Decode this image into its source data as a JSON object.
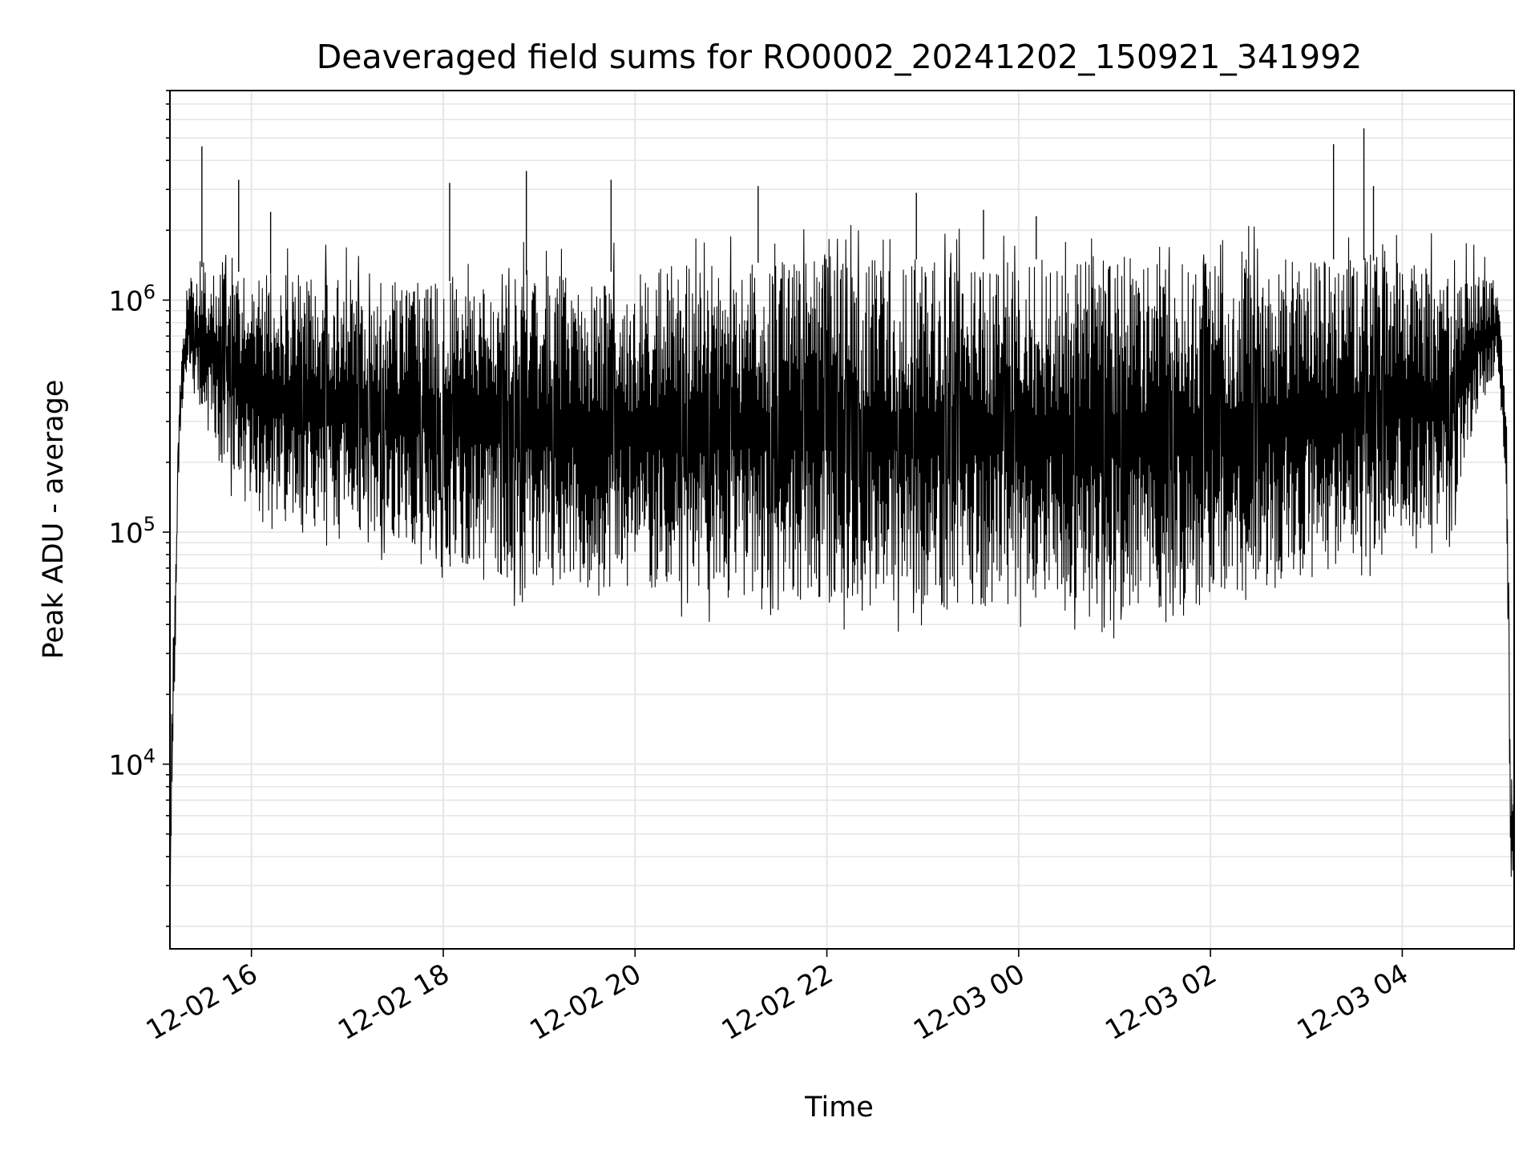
{
  "chart_data": {
    "type": "line",
    "title": "Deaveraged field sums for RO0002_20241202_150921_341992",
    "xlabel": "Time",
    "ylabel": "Peak ADU - average",
    "y_scale": "log",
    "ylim": [
      1600,
      8000000
    ],
    "xlim": [
      "2024-12-02 15:09",
      "2024-12-03 05:10"
    ],
    "grid": true,
    "legend": "none",
    "line_color": "#000000",
    "x_ticks": [
      "2024-12-02 16:00",
      "2024-12-02 18:00",
      "2024-12-02 20:00",
      "2024-12-02 22:00",
      "2024-12-03 00:00",
      "2024-12-03 02:00",
      "2024-12-03 04:00"
    ],
    "x_tick_labels": [
      "12-02 16",
      "12-02 18",
      "12-02 20",
      "12-02 22",
      "12-03 00",
      "12-03 02",
      "12-03 04"
    ],
    "y_major_ticks": [
      10000,
      100000,
      1000000
    ],
    "y_tick_labels": [
      {
        "base": "10",
        "exp": "4"
      },
      {
        "base": "10",
        "exp": "5"
      },
      {
        "base": "10",
        "exp": "6"
      }
    ],
    "envelope": [
      {
        "t": "2024-12-02 15:09",
        "low": 2500,
        "high": 2500
      },
      {
        "t": "2024-12-02 15:10",
        "low": 4500,
        "high": 18000
      },
      {
        "t": "2024-12-02 15:15",
        "low": 250000,
        "high": 400000
      },
      {
        "t": "2024-12-02 15:20",
        "low": 500000,
        "high": 1300000
      },
      {
        "t": "2024-12-02 15:30",
        "low": 300000,
        "high": 1400000
      },
      {
        "t": "2024-12-02 16:00",
        "low": 120000,
        "high": 1300000
      },
      {
        "t": "2024-12-02 16:30",
        "low": 105000,
        "high": 1300000
      },
      {
        "t": "2024-12-02 17:00",
        "low": 100000,
        "high": 1200000
      },
      {
        "t": "2024-12-02 17:30",
        "low": 95000,
        "high": 1200000
      },
      {
        "t": "2024-12-02 18:00",
        "low": 80000,
        "high": 1200000
      },
      {
        "t": "2024-12-02 18:30",
        "low": 65000,
        "high": 1250000
      },
      {
        "t": "2024-12-02 19:00",
        "low": 60000,
        "high": 1300000
      },
      {
        "t": "2024-12-02 19:30",
        "low": 58000,
        "high": 1300000
      },
      {
        "t": "2024-12-02 20:00",
        "low": 57000,
        "high": 1350000
      },
      {
        "t": "2024-12-02 20:30",
        "low": 55000,
        "high": 1400000
      },
      {
        "t": "2024-12-02 21:00",
        "low": 52000,
        "high": 1450000
      },
      {
        "t": "2024-12-02 21:30",
        "low": 52000,
        "high": 1450000
      },
      {
        "t": "2024-12-02 22:00",
        "low": 50000,
        "high": 1500000
      },
      {
        "t": "2024-12-02 22:30",
        "low": 50000,
        "high": 1500000
      },
      {
        "t": "2024-12-02 23:00",
        "low": 48000,
        "high": 1500000
      },
      {
        "t": "2024-12-02 23:30",
        "low": 48000,
        "high": 1500000
      },
      {
        "t": "2024-12-03 00:00",
        "low": 47000,
        "high": 1500000
      },
      {
        "t": "2024-12-03 00:30",
        "low": 46000,
        "high": 1500000
      },
      {
        "t": "2024-12-03 01:00",
        "low": 46000,
        "high": 1550000
      },
      {
        "t": "2024-12-03 01:30",
        "low": 47000,
        "high": 1500000
      },
      {
        "t": "2024-12-03 02:00",
        "low": 50000,
        "high": 1500000
      },
      {
        "t": "2024-12-03 02:30",
        "low": 58000,
        "high": 1500000
      },
      {
        "t": "2024-12-03 03:00",
        "low": 65000,
        "high": 1500000
      },
      {
        "t": "2024-12-03 03:30",
        "low": 75000,
        "high": 1500000
      },
      {
        "t": "2024-12-03 04:00",
        "low": 90000,
        "high": 1450000
      },
      {
        "t": "2024-12-03 04:30",
        "low": 110000,
        "high": 1400000
      },
      {
        "t": "2024-12-03 04:45",
        "low": 300000,
        "high": 1300000
      },
      {
        "t": "2024-12-03 05:00",
        "low": 500000,
        "high": 1200000
      },
      {
        "t": "2024-12-03 05:05",
        "low": 150000,
        "high": 300000
      },
      {
        "t": "2024-12-03 05:08",
        "low": 2300,
        "high": 9500
      },
      {
        "t": "2024-12-03 05:10",
        "low": 4500,
        "high": 7000
      }
    ],
    "spikes": [
      {
        "t": "2024-12-02 15:29",
        "value": 4600000
      },
      {
        "t": "2024-12-02 15:52",
        "value": 3300000
      },
      {
        "t": "2024-12-02 16:12",
        "value": 2400000
      },
      {
        "t": "2024-12-02 18:04",
        "value": 3200000
      },
      {
        "t": "2024-12-02 18:52",
        "value": 3600000
      },
      {
        "t": "2024-12-02 19:45",
        "value": 3300000
      },
      {
        "t": "2024-12-02 21:17",
        "value": 3100000
      },
      {
        "t": "2024-12-02 22:56",
        "value": 2900000
      },
      {
        "t": "2024-12-02 23:38",
        "value": 2450000
      },
      {
        "t": "2024-12-03 00:11",
        "value": 2300000
      },
      {
        "t": "2024-12-03 03:17",
        "value": 4700000
      },
      {
        "t": "2024-12-03 03:36",
        "value": 5500000
      },
      {
        "t": "2024-12-03 03:42",
        "value": 3100000
      }
    ]
  }
}
